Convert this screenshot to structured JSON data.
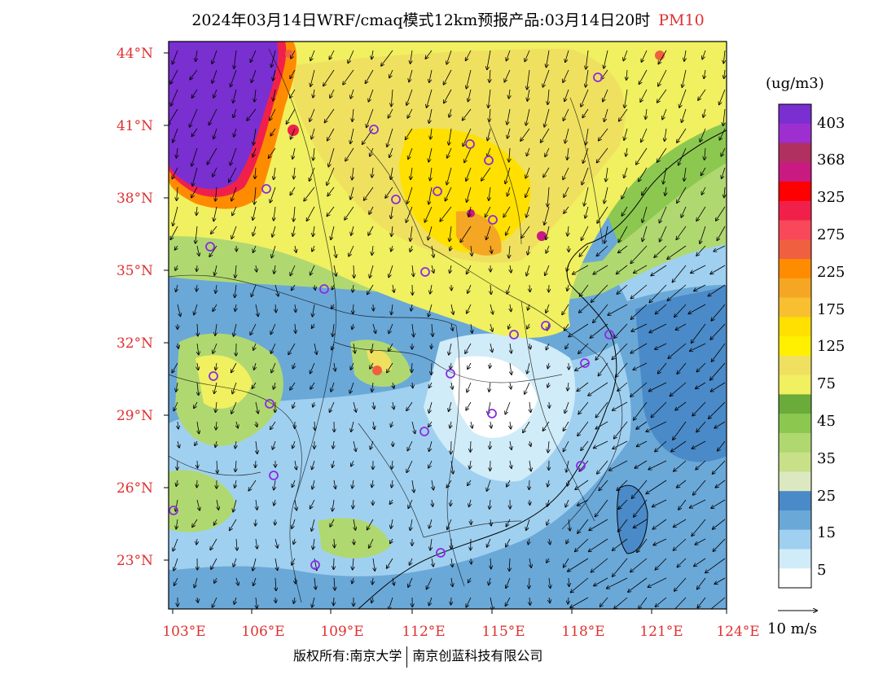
{
  "title": {
    "main": "2024年03月14日WRF/cmaq模式12km预报产品:03月14日20时",
    "pollutant": "PM10"
  },
  "axes": {
    "lat_labels": [
      "44°N",
      "41°N",
      "38°N",
      "35°N",
      "32°N",
      "29°N",
      "26°N",
      "23°N"
    ],
    "lon_labels": [
      "103°E",
      "106°E",
      "109°E",
      "112°E",
      "115°E",
      "118°E",
      "121°E",
      "124°E"
    ]
  },
  "colorbar": {
    "unit": "(ug/m3)",
    "labels": [
      "403",
      "368",
      "325",
      "275",
      "225",
      "175",
      "125",
      "75",
      "45",
      "35",
      "25",
      "15",
      "5"
    ],
    "colors": [
      "#7a2fd0",
      "#9d2fd0",
      "#b03060",
      "#c81a80",
      "#ff0000",
      "#f0204a",
      "#f8485a",
      "#f06040",
      "#ff8c00",
      "#f5a623",
      "#f8c030",
      "#ffe000",
      "#fff000",
      "#f0e060",
      "#f0f060",
      "#6aab3a",
      "#8cc850",
      "#b0d870",
      "#c8e088",
      "#dce8c0",
      "#4a8ac8",
      "#6aa8d8",
      "#a0d0f0",
      "#d0ecf8",
      "#ffffff"
    ]
  },
  "wind": {
    "reference_label": "10 m/s"
  },
  "cities_count_hint": "major-city-markers",
  "copyright": {
    "left": "版权所有:南京大学",
    "right": "南京创蓝科技有限公司"
  },
  "colors": {
    "axis_label": "#e03030",
    "city_marker": "#8a2be2"
  }
}
